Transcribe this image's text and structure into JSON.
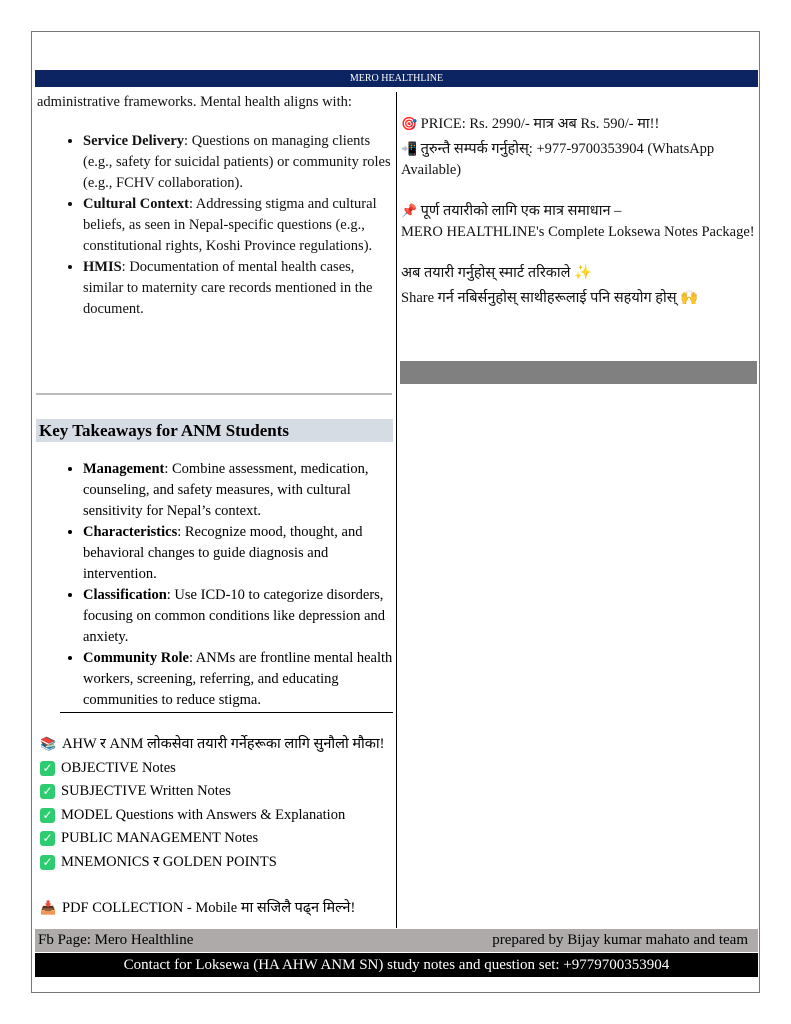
{
  "header": {
    "title": "MERO HEALTHLINE"
  },
  "left": {
    "intro": "administrative frameworks. Mental health aligns with:",
    "bullets": [
      {
        "term": "Service Delivery",
        "text": ": Questions on managing clients (e.g., safety for suicidal patients) or community roles (e.g., FCHV collaboration)."
      },
      {
        "term": "Cultural Context",
        "text": ": Addressing stigma and cultural beliefs, as seen in Nepal-specific questions (e.g., constitutional rights, Koshi Province regulations)."
      },
      {
        "term": "HMIS",
        "text": ": Documentation of mental health cases, similar to maternity care records mentioned in the document."
      }
    ],
    "takeaways_heading": "Key Takeaways for ANM Students",
    "takeaways": [
      {
        "term": "Management",
        "text": ": Combine assessment, medication, counseling, and safety measures, with cultural sensitivity for Nepal’s context."
      },
      {
        "term": "Characteristics",
        "text": ": Recognize mood, thought, and behavioral changes to guide diagnosis and intervention."
      },
      {
        "term": "Classification",
        "text": ": Use ICD-10 to categorize disorders, focusing on common conditions like depression and anxiety."
      },
      {
        "term": "Community Role",
        "text": ": ANMs are frontline mental health workers, screening, referring, and educating communities to reduce stigma."
      }
    ],
    "promo_title": "AHW र ANM लोकसेवा तयारी गर्नेहरूका लागि सुनौलो मौका!",
    "checklist": [
      "OBJECTIVE Notes",
      "SUBJECTIVE Written Notes",
      "MODEL Questions with Answers & Explanation",
      "PUBLIC MANAGEMENT Notes",
      "MNEMONICS र GOLDEN POINTS"
    ],
    "pdf": "PDF COLLECTION - Mobile मा सजिलै पढ्न मिल्ने!"
  },
  "right": {
    "price": "PRICE: Rs. 2990/- मात्र अब Rs. 590/- मा!!",
    "contact": "तुरुन्तै सम्पर्क गर्नुहोस्: +977-9700353904 (WhatsApp Available)",
    "solution": "पूर्ण तयारीको लागि एक मात्र समाधान –",
    "package": "MERO HEALTHLINE's Complete Loksewa Notes Package!",
    "smart": "अब तयारी गर्नुहोस् स्मार्ट तरिकाले ✨",
    "share": "Share गर्न नबिर्सनुहोस् साथीहरूलाई पनि सहयोग होस् 🙌"
  },
  "footer": {
    "fb": "Fb Page: Mero Healthline",
    "prepared": "prepared by Bijay kumar mahato and team",
    "contact": "Contact for Loksewa (HA AHW ANM SN) study notes and question set: +9779700353904"
  },
  "icons": {
    "check": "✓",
    "target": "🎯",
    "phone": "📲",
    "pin": "📌",
    "books": "📚",
    "download": "📥"
  }
}
